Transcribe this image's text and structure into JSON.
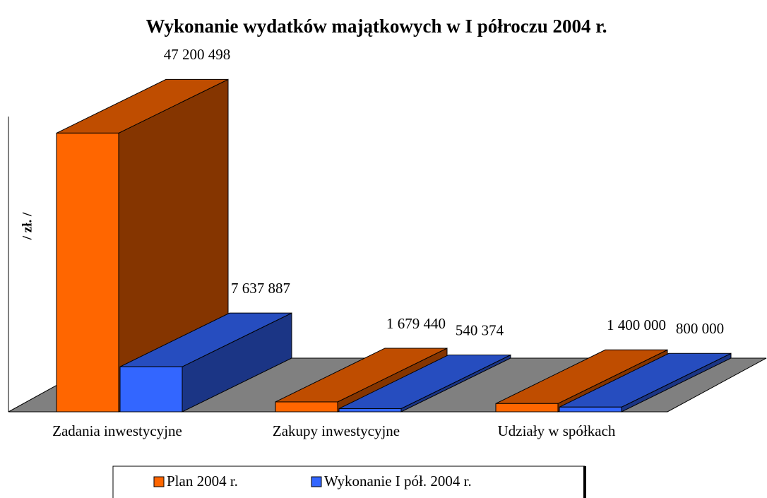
{
  "chart_data": {
    "type": "bar3d",
    "title": "Wykonanie wydatków majątkowych w I półroczu 2004 r.",
    "y_label": "/ zł. /",
    "categories": [
      "Zadania inwestycyjne",
      "Zakupy inwestycyjne",
      "Udziały w spółkach"
    ],
    "series": [
      {
        "name": "Plan 2004 r.",
        "color": "#ff6600",
        "values": [
          47200498,
          1679440,
          1400000
        ],
        "value_labels": [
          "47 200 498",
          "1 679 440",
          "1 400 000"
        ]
      },
      {
        "name": "Wykonanie I pół. 2004 r.",
        "color": "#3366ff",
        "values": [
          7637887,
          540374,
          800000
        ],
        "value_labels": [
          "7 637 887",
          "540 374",
          "800 000"
        ]
      }
    ],
    "ylim": [
      0,
      50000000
    ],
    "legend": "bottom"
  }
}
